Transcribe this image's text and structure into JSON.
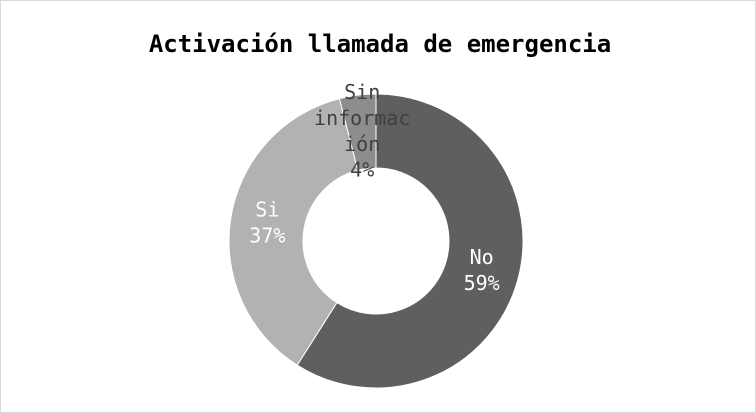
{
  "chart_data": {
    "type": "donut",
    "title": "Activación llamada de emergencia",
    "categories": [
      "No",
      "Si",
      "Sin información"
    ],
    "values": [
      59,
      37,
      4
    ],
    "value_labels": [
      "59%",
      "37%",
      "4%"
    ],
    "colors": [
      "#5f5f5f",
      "#b2b2b2",
      "#8d8d8d"
    ]
  }
}
